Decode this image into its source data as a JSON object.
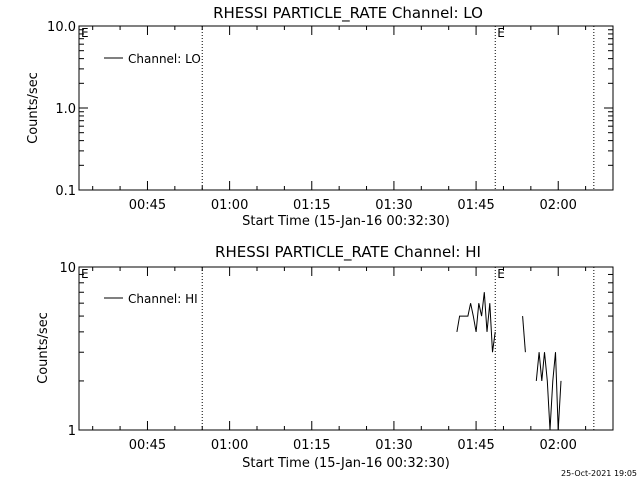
{
  "footer": {
    "timestamp": "25-Oct-2021 19:05"
  },
  "chart_data": [
    {
      "type": "line",
      "title": "RHESSI PARTICLE_RATE Channel: LO",
      "xlabel": "Start Time (15-Jan-16 00:32:30)",
      "ylabel": "Counts/sec",
      "yscale": "log",
      "ylim": [
        0.1,
        10.0
      ],
      "xlim": [
        "00:32:30",
        "02:10:00"
      ],
      "x_ticks": [
        "00:45",
        "01:00",
        "01:15",
        "01:30",
        "01:45",
        "02:00"
      ],
      "y_ticks": [
        "0.1",
        "1.0",
        "10.0"
      ],
      "legend": {
        "position": "top-left",
        "entries": [
          "Channel: LO"
        ]
      },
      "grid": false,
      "markers": [
        {
          "time": "00:55:00",
          "label": ""
        },
        {
          "time": "01:48:30",
          "label": "E"
        },
        {
          "time": "02:06:30",
          "label": ""
        },
        {
          "time": "00:32:30",
          "label": "E"
        }
      ],
      "series": [
        {
          "name": "Channel: LO",
          "points": []
        }
      ]
    },
    {
      "type": "line",
      "title": "RHESSI PARTICLE_RATE Channel: HI",
      "xlabel": "Start Time (15-Jan-16 00:32:30)",
      "ylabel": "Counts/sec",
      "yscale": "log",
      "ylim": [
        1,
        10
      ],
      "xlim": [
        "00:32:30",
        "02:10:00"
      ],
      "x_ticks": [
        "00:45",
        "01:00",
        "01:15",
        "01:30",
        "01:45",
        "02:00"
      ],
      "y_ticks": [
        "1",
        "10"
      ],
      "legend": {
        "position": "top-left",
        "entries": [
          "Channel: HI"
        ]
      },
      "grid": false,
      "markers": [
        {
          "time": "00:55:00",
          "label": ""
        },
        {
          "time": "01:48:30",
          "label": "E"
        },
        {
          "time": "02:06:30",
          "label": ""
        },
        {
          "time": "00:32:30",
          "label": "E"
        }
      ],
      "series": [
        {
          "name": "Channel: HI",
          "segments": [
            [
              [
                "01:41:30",
                4.0
              ],
              [
                "01:42:00",
                5.0
              ],
              [
                "01:43:00",
                5.0
              ],
              [
                "01:43:30",
                5.0
              ],
              [
                "01:44:00",
                6.0
              ],
              [
                "01:44:30",
                5.0
              ],
              [
                "01:45:00",
                4.0
              ],
              [
                "01:45:30",
                6.0
              ],
              [
                "01:46:00",
                5.0
              ],
              [
                "01:46:30",
                7.0
              ],
              [
                "01:47:00",
                4.0
              ],
              [
                "01:47:30",
                6.0
              ],
              [
                "01:48:00",
                3.0
              ],
              [
                "01:48:30",
                4.0
              ]
            ],
            [
              [
                "01:53:30",
                5.0
              ],
              [
                "01:54:00",
                3.0
              ]
            ],
            [
              [
                "01:56:00",
                2.0
              ],
              [
                "01:56:30",
                3.0
              ],
              [
                "01:57:00",
                2.0
              ],
              [
                "01:57:30",
                3.0
              ],
              [
                "01:58:00",
                2.0
              ],
              [
                "01:58:30",
                1.0
              ],
              [
                "01:59:00",
                2.0
              ],
              [
                "01:59:30",
                3.0
              ],
              [
                "02:00:00",
                1.0
              ],
              [
                "02:00:30",
                2.0
              ]
            ]
          ]
        }
      ]
    }
  ]
}
